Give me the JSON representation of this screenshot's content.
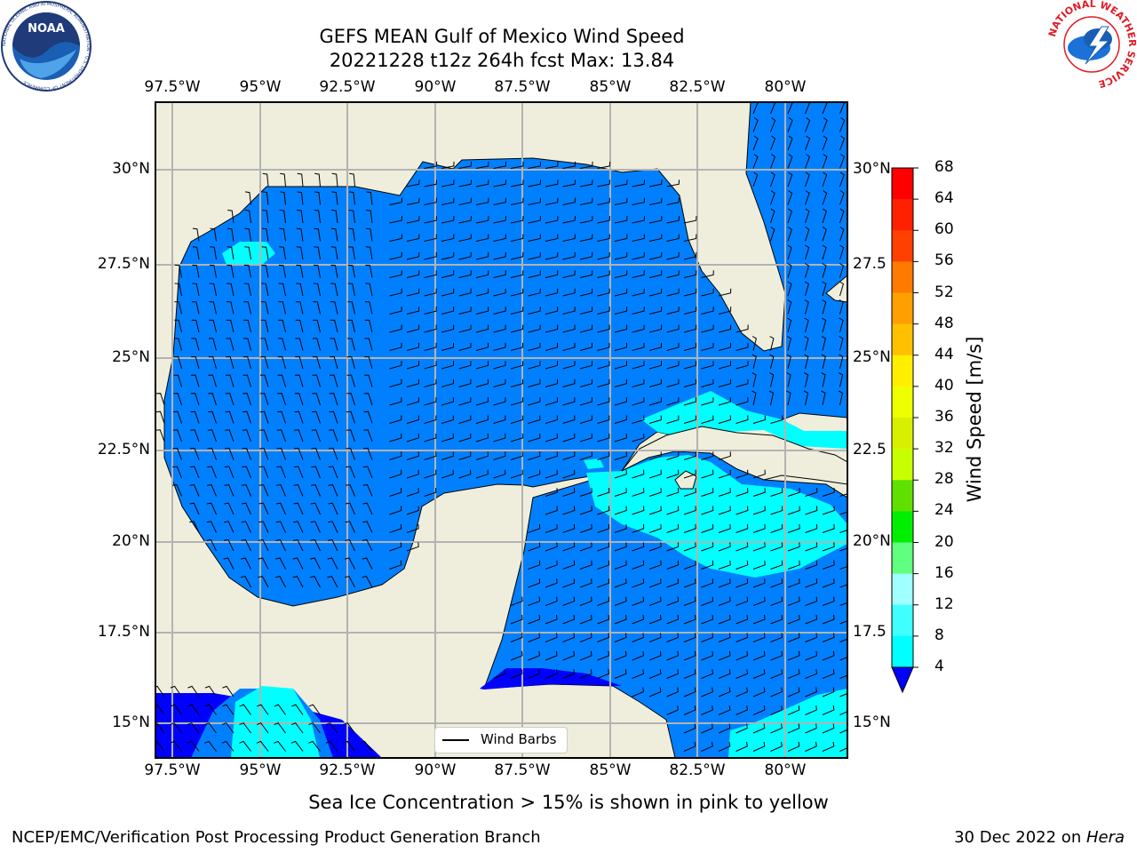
{
  "header": {
    "title_line1": "GEFS MEAN Gulf of Mexico Wind Speed",
    "title_line2": "20221228 t12z 264h fcst   Max: 13.84"
  },
  "map": {
    "lon_ticks": [
      "97.5°W",
      "95°W",
      "92.5°W",
      "90°W",
      "87.5°W",
      "85°W",
      "82.5°W",
      "80°W"
    ],
    "lat_ticks": [
      "30°N",
      "27.5°N",
      "25°N",
      "22.5°N",
      "20°N",
      "17.5°N",
      "15°N"
    ],
    "lat_ticks_right": [
      "30°N",
      "27.5",
      "25°N",
      "22.5",
      "20°N",
      "17.5",
      "15°N"
    ],
    "legend_label": "Wind Barbs",
    "colors": {
      "land": "#efeedc",
      "sea_4_8": "#0080ff",
      "sea_8_12": "#00ffff",
      "sea_below_4": "#0000ff",
      "grid": "#b3b3b3"
    }
  },
  "colorbar": {
    "label": "Wind Speed [m/s]",
    "ticks": [
      "68",
      "64",
      "60",
      "56",
      "52",
      "48",
      "44",
      "40",
      "36",
      "32",
      "28",
      "24",
      "20",
      "16",
      "12",
      "8",
      "4"
    ],
    "colors": [
      "#ff0000",
      "#ff2000",
      "#ff4000",
      "#ff7a00",
      "#ffa000",
      "#ffc000",
      "#ffee00",
      "#eeff00",
      "#d8f000",
      "#c8ff00",
      "#60e000",
      "#00ee00",
      "#60ff80",
      "#a0ffff",
      "#40ffff",
      "#00ffff",
      "#0080ff"
    ],
    "under_color": "#0000ff"
  },
  "footer": {
    "caption": "Sea Ice Concentration > 15% is shown in pink to yellow",
    "left": "NCEP/EMC/Verification Post Processing Product Generation Branch",
    "right_prefix": "30 Dec 2022 on ",
    "right_machine": "Hera"
  },
  "logos": {
    "noaa_text": "NOAA",
    "noaa_ring": "NATIONAL OCEANIC AND ATMOSPHERIC ADMINISTRATION · U.S. DEPARTMENT OF COMMERCE",
    "nws_ring": "NATIONAL WEATHER SERVICE"
  }
}
